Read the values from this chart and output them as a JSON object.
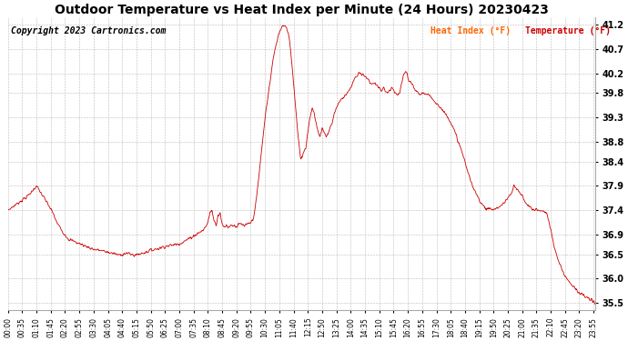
{
  "title": "Outdoor Temperature vs Heat Index per Minute (24 Hours) 20230423",
  "copyright": "Copyright 2023 Cartronics.com",
  "legend_heat": "Heat Index (°F)",
  "legend_temp": "Temperature (°F)",
  "legend_heat_color": "#ff6600",
  "legend_temp_color": "#cc0000",
  "line_color_heat": "#cc0000",
  "line_color_temp": "#000000",
  "background_color": "#ffffff",
  "grid_color": "#bbbbbb",
  "title_fontsize": 10,
  "copyright_fontsize": 7,
  "yticks": [
    35.5,
    36.0,
    36.5,
    36.9,
    37.4,
    37.9,
    38.4,
    38.8,
    39.3,
    39.8,
    40.2,
    40.7,
    41.2
  ],
  "ylim": [
    35.35,
    41.35
  ],
  "total_minutes": 1440,
  "keypoints": [
    [
      0,
      37.4
    ],
    [
      25,
      37.55
    ],
    [
      50,
      37.7
    ],
    [
      65,
      37.85
    ],
    [
      70,
      37.9
    ],
    [
      85,
      37.7
    ],
    [
      100,
      37.5
    ],
    [
      110,
      37.35
    ],
    [
      120,
      37.15
    ],
    [
      135,
      36.95
    ],
    [
      150,
      36.8
    ],
    [
      165,
      36.75
    ],
    [
      180,
      36.7
    ],
    [
      195,
      36.65
    ],
    [
      210,
      36.6
    ],
    [
      225,
      36.58
    ],
    [
      240,
      36.55
    ],
    [
      255,
      36.52
    ],
    [
      265,
      36.5
    ],
    [
      270,
      36.48
    ],
    [
      280,
      36.5
    ],
    [
      290,
      36.52
    ],
    [
      300,
      36.5
    ],
    [
      310,
      36.48
    ],
    [
      320,
      36.5
    ],
    [
      330,
      36.52
    ],
    [
      340,
      36.55
    ],
    [
      350,
      36.58
    ],
    [
      360,
      36.6
    ],
    [
      370,
      36.62
    ],
    [
      380,
      36.65
    ],
    [
      390,
      36.67
    ],
    [
      400,
      36.68
    ],
    [
      410,
      36.7
    ],
    [
      420,
      36.72
    ],
    [
      430,
      36.75
    ],
    [
      440,
      36.8
    ],
    [
      450,
      36.85
    ],
    [
      460,
      36.9
    ],
    [
      470,
      36.95
    ],
    [
      480,
      37.0
    ],
    [
      490,
      37.15
    ],
    [
      495,
      37.35
    ],
    [
      500,
      37.4
    ],
    [
      505,
      37.2
    ],
    [
      510,
      37.1
    ],
    [
      515,
      37.3
    ],
    [
      520,
      37.35
    ],
    [
      525,
      37.1
    ],
    [
      530,
      37.05
    ],
    [
      535,
      37.1
    ],
    [
      540,
      37.05
    ],
    [
      545,
      37.1
    ],
    [
      550,
      37.08
    ],
    [
      555,
      37.1
    ],
    [
      560,
      37.05
    ],
    [
      565,
      37.1
    ],
    [
      570,
      37.12
    ],
    [
      575,
      37.1
    ],
    [
      580,
      37.08
    ],
    [
      585,
      37.1
    ],
    [
      590,
      37.12
    ],
    [
      595,
      37.15
    ],
    [
      600,
      37.2
    ],
    [
      605,
      37.4
    ],
    [
      610,
      37.7
    ],
    [
      615,
      38.1
    ],
    [
      620,
      38.5
    ],
    [
      625,
      38.9
    ],
    [
      630,
      39.3
    ],
    [
      635,
      39.6
    ],
    [
      640,
      39.9
    ],
    [
      645,
      40.2
    ],
    [
      650,
      40.5
    ],
    [
      655,
      40.7
    ],
    [
      660,
      40.9
    ],
    [
      665,
      41.05
    ],
    [
      670,
      41.15
    ],
    [
      675,
      41.2
    ],
    [
      680,
      41.18
    ],
    [
      685,
      41.1
    ],
    [
      690,
      40.9
    ],
    [
      695,
      40.5
    ],
    [
      700,
      40.0
    ],
    [
      705,
      39.5
    ],
    [
      710,
      39.0
    ],
    [
      715,
      38.6
    ],
    [
      718,
      38.45
    ],
    [
      720,
      38.5
    ],
    [
      725,
      38.6
    ],
    [
      730,
      38.7
    ],
    [
      735,
      39.0
    ],
    [
      740,
      39.3
    ],
    [
      745,
      39.5
    ],
    [
      750,
      39.4
    ],
    [
      755,
      39.2
    ],
    [
      760,
      39.0
    ],
    [
      765,
      38.9
    ],
    [
      770,
      39.1
    ],
    [
      775,
      39.0
    ],
    [
      780,
      38.9
    ],
    [
      785,
      39.0
    ],
    [
      790,
      39.1
    ],
    [
      795,
      39.2
    ],
    [
      800,
      39.4
    ],
    [
      805,
      39.5
    ],
    [
      810,
      39.6
    ],
    [
      815,
      39.65
    ],
    [
      820,
      39.7
    ],
    [
      825,
      39.75
    ],
    [
      830,
      39.8
    ],
    [
      835,
      39.85
    ],
    [
      840,
      39.9
    ],
    [
      845,
      40.0
    ],
    [
      850,
      40.1
    ],
    [
      855,
      40.15
    ],
    [
      860,
      40.2
    ],
    [
      865,
      40.2
    ],
    [
      870,
      40.2
    ],
    [
      875,
      40.15
    ],
    [
      880,
      40.1
    ],
    [
      885,
      40.05
    ],
    [
      890,
      40.0
    ],
    [
      895,
      40.0
    ],
    [
      900,
      40.0
    ],
    [
      905,
      39.95
    ],
    [
      910,
      39.9
    ],
    [
      915,
      39.85
    ],
    [
      920,
      39.9
    ],
    [
      925,
      39.85
    ],
    [
      930,
      39.8
    ],
    [
      935,
      39.85
    ],
    [
      940,
      39.9
    ],
    [
      945,
      39.85
    ],
    [
      950,
      39.8
    ],
    [
      955,
      39.75
    ],
    [
      960,
      39.8
    ],
    [
      965,
      40.0
    ],
    [
      970,
      40.2
    ],
    [
      975,
      40.25
    ],
    [
      978,
      40.2
    ],
    [
      980,
      40.1
    ],
    [
      985,
      40.0
    ],
    [
      990,
      40.0
    ],
    [
      995,
      39.9
    ],
    [
      1000,
      39.85
    ],
    [
      1005,
      39.8
    ],
    [
      1010,
      39.78
    ],
    [
      1015,
      39.8
    ],
    [
      1020,
      39.8
    ],
    [
      1030,
      39.75
    ],
    [
      1040,
      39.7
    ],
    [
      1050,
      39.6
    ],
    [
      1060,
      39.5
    ],
    [
      1070,
      39.4
    ],
    [
      1080,
      39.3
    ],
    [
      1090,
      39.1
    ],
    [
      1100,
      38.9
    ],
    [
      1110,
      38.65
    ],
    [
      1120,
      38.4
    ],
    [
      1130,
      38.1
    ],
    [
      1140,
      37.85
    ],
    [
      1150,
      37.7
    ],
    [
      1160,
      37.55
    ],
    [
      1170,
      37.45
    ],
    [
      1180,
      37.42
    ],
    [
      1190,
      37.42
    ],
    [
      1200,
      37.45
    ],
    [
      1210,
      37.5
    ],
    [
      1220,
      37.6
    ],
    [
      1230,
      37.7
    ],
    [
      1235,
      37.75
    ],
    [
      1240,
      37.9
    ],
    [
      1245,
      37.85
    ],
    [
      1250,
      37.8
    ],
    [
      1255,
      37.75
    ],
    [
      1260,
      37.7
    ],
    [
      1265,
      37.6
    ],
    [
      1270,
      37.55
    ],
    [
      1275,
      37.5
    ],
    [
      1280,
      37.45
    ],
    [
      1290,
      37.42
    ],
    [
      1300,
      37.4
    ],
    [
      1310,
      37.38
    ],
    [
      1320,
      37.35
    ],
    [
      1325,
      37.2
    ],
    [
      1330,
      37.0
    ],
    [
      1335,
      36.8
    ],
    [
      1340,
      36.6
    ],
    [
      1345,
      36.45
    ],
    [
      1350,
      36.35
    ],
    [
      1355,
      36.25
    ],
    [
      1360,
      36.15
    ],
    [
      1365,
      36.05
    ],
    [
      1370,
      36.0
    ],
    [
      1375,
      35.95
    ],
    [
      1380,
      35.9
    ],
    [
      1385,
      35.85
    ],
    [
      1390,
      35.8
    ],
    [
      1395,
      35.75
    ],
    [
      1400,
      35.7
    ],
    [
      1410,
      35.65
    ],
    [
      1420,
      35.6
    ],
    [
      1430,
      35.55
    ],
    [
      1439,
      35.5
    ]
  ]
}
